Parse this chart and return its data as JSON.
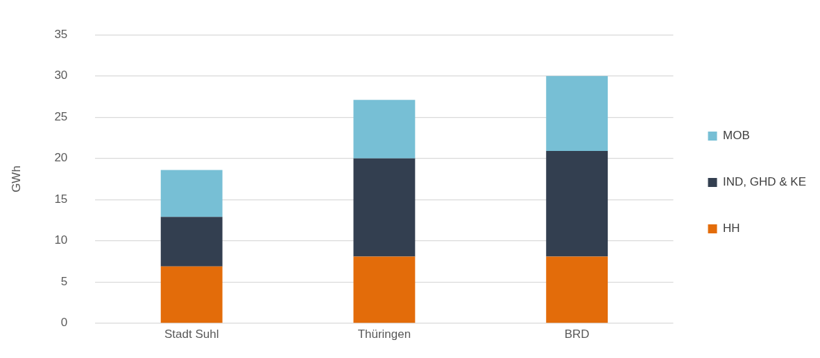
{
  "chart_data": {
    "type": "bar",
    "stacked": true,
    "ylabel": "GWh",
    "categories": [
      "Stadt Suhl",
      "Thüringen",
      "BRD"
    ],
    "series": [
      {
        "name": "HH",
        "color": "#e36c0a",
        "values": [
          6.9,
          8.1,
          8.1
        ]
      },
      {
        "name": "IND, GHD & KE",
        "color": "#333f50",
        "values": [
          6.0,
          11.9,
          12.8
        ]
      },
      {
        "name": "MOB",
        "color": "#77bfd5",
        "values": [
          5.7,
          7.1,
          9.1
        ]
      }
    ],
    "ylim": [
      0,
      35
    ],
    "yticks": [
      0,
      5,
      10,
      15,
      20,
      25,
      30,
      35
    ],
    "grid": "y",
    "legend": "right"
  }
}
